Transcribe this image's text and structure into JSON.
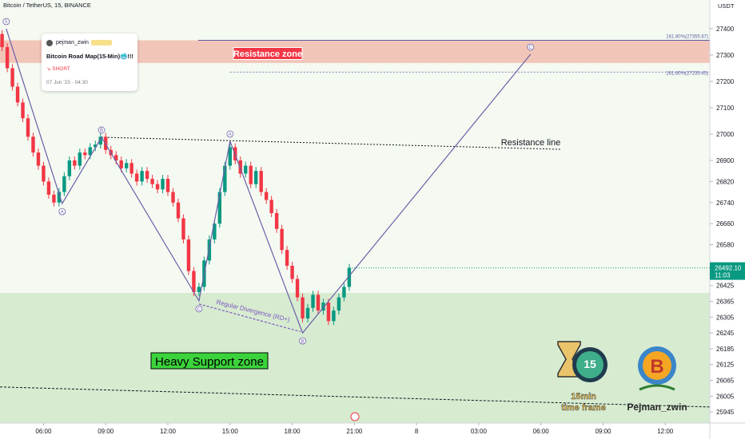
{
  "chart_data": {
    "type": "candlestick",
    "title": "Bitcoin / TetherUS, 15, BINANCE",
    "y_axis_title": "USDT",
    "up_color": "#089981",
    "down_color": "#f23645",
    "xlim": [
      3.9,
      38.15
    ],
    "ylim": [
      25903,
      27509
    ],
    "xticks": [
      {
        "value": 6,
        "label": "06:00"
      },
      {
        "value": 9,
        "label": "09:00"
      },
      {
        "value": 12,
        "label": "12:00"
      },
      {
        "value": 15,
        "label": "15:00"
      },
      {
        "value": 18,
        "label": "18:00"
      },
      {
        "value": 21,
        "label": "21:00"
      },
      {
        "value": 24,
        "label": "8"
      },
      {
        "value": 27,
        "label": "03:00"
      },
      {
        "value": 30,
        "label": "06:00"
      },
      {
        "value": 33,
        "label": "09:00"
      },
      {
        "value": 36,
        "label": "12:00"
      }
    ],
    "yticks": [
      27400,
      27300,
      27200,
      27100,
      27000,
      26900,
      26820,
      26740,
      26660,
      26580,
      26425,
      26365,
      26305,
      26245,
      26185,
      26125,
      26065,
      26005,
      25945
    ],
    "x": [
      4.0,
      4.25,
      4.5,
      4.75,
      5.0,
      5.25,
      5.5,
      5.75,
      6.0,
      6.25,
      6.5,
      6.75,
      7.0,
      7.25,
      7.5,
      7.75,
      8.0,
      8.25,
      8.5,
      8.75,
      9.0,
      9.25,
      9.5,
      9.75,
      10.0,
      10.25,
      10.5,
      10.75,
      11.0,
      11.25,
      11.5,
      11.75,
      12.0,
      12.25,
      12.5,
      12.75,
      13.0,
      13.25,
      13.5,
      13.75,
      14.0,
      14.25,
      14.5,
      14.75,
      15.0,
      15.25,
      15.5,
      15.75,
      16.0,
      16.25,
      16.5,
      16.75,
      17.0,
      17.25,
      17.5,
      17.75,
      18.0,
      18.25,
      18.5,
      18.75,
      19.0,
      19.25,
      19.5,
      19.75,
      20.0,
      20.25,
      20.5,
      20.75
    ],
    "open": [
      27380,
      27330,
      27250,
      27180,
      27120,
      27060,
      26990,
      26930,
      26880,
      26820,
      26770,
      26740,
      26780,
      26840,
      26900,
      26880,
      26930,
      26920,
      26950,
      26960,
      26990,
      26940,
      26920,
      26900,
      26870,
      26890,
      26850,
      26820,
      26860,
      26830,
      26810,
      26790,
      26830,
      26780,
      26740,
      26680,
      26600,
      26480,
      26400,
      26420,
      26520,
      26600,
      26660,
      26780,
      26880,
      26950,
      26900,
      26850,
      26880,
      26810,
      26860,
      26780,
      26750,
      26700,
      26640,
      26560,
      26500,
      26450,
      26380,
      26300,
      26340,
      26390,
      26330,
      26360,
      26290,
      26330,
      26380,
      26420
    ],
    "high": [
      27395,
      27345,
      27265,
      27195,
      27135,
      27075,
      27005,
      26945,
      26895,
      26835,
      26785,
      26795,
      26855,
      26915,
      26915,
      26945,
      26945,
      26965,
      26975,
      27005,
      27005,
      26955,
      26935,
      26915,
      26905,
      26905,
      26865,
      26875,
      26875,
      26845,
      26825,
      26845,
      26845,
      26795,
      26755,
      26695,
      26615,
      26495,
      26435,
      26535,
      26615,
      26675,
      26795,
      26895,
      26965,
      26965,
      26915,
      26895,
      26895,
      26875,
      26875,
      26795,
      26765,
      26715,
      26655,
      26575,
      26515,
      26465,
      26395,
      26355,
      26405,
      26405,
      26375,
      26375,
      26345,
      26395,
      26435,
      26507.1
    ],
    "low": [
      27315,
      27235,
      27165,
      27105,
      27045,
      26975,
      26915,
      26865,
      26805,
      26755,
      26725,
      26725,
      26765,
      26825,
      26865,
      26865,
      26905,
      26905,
      26935,
      26945,
      26925,
      26905,
      26885,
      26855,
      26855,
      26835,
      26805,
      26805,
      26815,
      26795,
      26775,
      26775,
      26765,
      26725,
      26665,
      26585,
      26465,
      26385,
      26385,
      26405,
      26505,
      26585,
      26645,
      26765,
      26865,
      26885,
      26835,
      26835,
      26795,
      26795,
      26765,
      26735,
      26685,
      26625,
      26545,
      26485,
      26435,
      26365,
      26285,
      26285,
      26325,
      26315,
      26315,
      26275,
      26275,
      26315,
      26365,
      26405
    ],
    "close": [
      27330,
      27250,
      27180,
      27120,
      27060,
      26990,
      26930,
      26880,
      26820,
      26770,
      26740,
      26780,
      26840,
      26900,
      26880,
      26930,
      26920,
      26950,
      26960,
      26990,
      26940,
      26920,
      26900,
      26870,
      26890,
      26850,
      26820,
      26860,
      26830,
      26810,
      26790,
      26830,
      26780,
      26740,
      26680,
      26600,
      26480,
      26400,
      26420,
      26520,
      26600,
      26660,
      26780,
      26880,
      26950,
      26900,
      26850,
      26880,
      26810,
      26860,
      26780,
      26750,
      26700,
      26640,
      26560,
      26500,
      26450,
      26380,
      26300,
      26340,
      26390,
      26330,
      26360,
      26290,
      26330,
      26380,
      26420,
      26492.1
    ],
    "last_price": {
      "value": 26492.1,
      "label": "26492.10"
    },
    "countdown": "11:03",
    "zones": [
      {
        "label": "Resistance zone",
        "range": [
          27270,
          27356
        ],
        "color": "#f1c6b9"
      },
      {
        "label": "Heavy Support zone",
        "range": [
          25903,
          26397
        ],
        "color": "#d6ebd0"
      }
    ],
    "fib_levels": [
      {
        "value": 27355.87,
        "label": "161.80%(27355.87)",
        "from": 13.46
      },
      {
        "value": 27235.45,
        "label": "161.80%(27235.45)",
        "from": 15.0
      }
    ],
    "wave": {
      "x": [
        4.2,
        6.9,
        8.8,
        13.5,
        15.0,
        18.5,
        29.5
      ],
      "y": [
        27400,
        26736,
        26988,
        26367,
        26973,
        26245,
        27303
      ],
      "labels": [
        "5",
        "A",
        "B",
        "C",
        "A",
        "B",
        "C"
      ]
    },
    "resistance_line": {
      "label": "Resistance line",
      "x": [
        8.8,
        31.0
      ],
      "y": [
        26988,
        26942
      ]
    },
    "divergence_line": {
      "label": "Regular Divergence (RD+)",
      "x": [
        13.5,
        18.4
      ],
      "y": [
        26355,
        26250
      ]
    },
    "support_line": {
      "x": [
        3.9,
        38.15
      ],
      "y": [
        26040,
        25964
      ]
    }
  },
  "idea_card": {
    "author": "pejman_zwin",
    "title": "Bitcoin Road Map(15-Min)🥶!!!",
    "direction": "SHORT",
    "date": "07 Jun '23 · 04:30"
  },
  "branding": {
    "timer": "15",
    "line1": "15min",
    "line2": "time frame",
    "name": "Pejman_zwin"
  }
}
